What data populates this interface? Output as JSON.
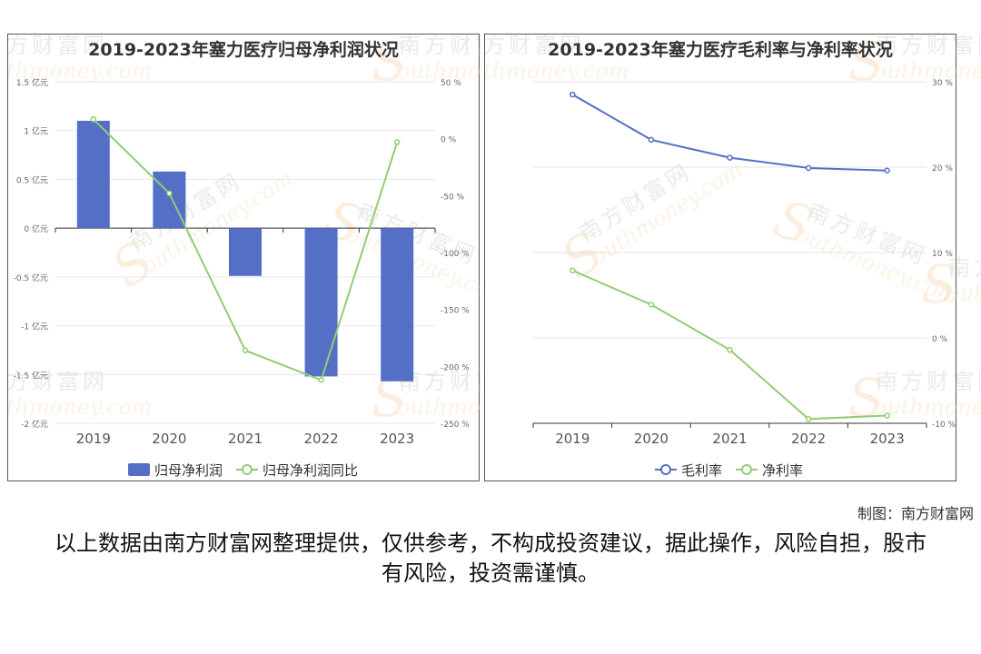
{
  "chart_data": [
    {
      "type": "bar+line",
      "title": "2019-2023年塞力医疗归母净利润状况",
      "categories": [
        "2019",
        "2020",
        "2021",
        "2022",
        "2023"
      ],
      "series": [
        {
          "name": "归母净利润",
          "type": "bar",
          "axis": "left",
          "unit": "亿元",
          "color": "#5470c6",
          "values": [
            1.1,
            0.58,
            -0.49,
            -1.52,
            -1.57
          ]
        },
        {
          "name": "归母净利润同比",
          "type": "line",
          "axis": "right",
          "unit": "%",
          "color": "#91cc75",
          "values": [
            17,
            -48,
            -186,
            -212,
            -3
          ]
        }
      ],
      "y_left": {
        "min": -2,
        "max": 1.5,
        "ticks": [
          "1.5 亿元",
          "1 亿元",
          "0.5 亿元",
          "0 亿元",
          "-0.5 亿元",
          "-1 亿元",
          "-1.5 亿元",
          "-2 亿元"
        ]
      },
      "y_right": {
        "min": -250,
        "max": 50,
        "ticks": [
          "50 %",
          "0 %",
          "-50 %",
          "-100 %",
          "-150 %",
          "-200 %",
          "-250 %"
        ]
      },
      "legend_position": "bottom"
    },
    {
      "type": "line",
      "title": "2019-2023年塞力医疗毛利率与净利率状况",
      "categories": [
        "2019",
        "2020",
        "2021",
        "2022",
        "2023"
      ],
      "series": [
        {
          "name": "毛利率",
          "type": "line",
          "unit": "%",
          "color": "#5470c6",
          "values": [
            28.5,
            23.2,
            21.1,
            19.9,
            19.6
          ]
        },
        {
          "name": "净利率",
          "type": "line",
          "unit": "%",
          "color": "#91cc75",
          "values": [
            7.9,
            3.9,
            -1.4,
            -9.5,
            -9.1
          ]
        }
      ],
      "y_right": {
        "min": -10,
        "max": 30,
        "ticks": [
          "30 %",
          "20 %",
          "10 %",
          "0 %",
          "-10 %"
        ]
      },
      "legend_position": "bottom"
    }
  ],
  "watermark": {
    "cn": "南方财富网",
    "en": "outhmoney.com",
    "letter": "S"
  },
  "credit": "制图：南方财富网",
  "disclaimer": "以上数据由南方财富网整理提供，仅供参考，不构成投资建议，据此操作，风险自担，股市有风险，投资需谨慎。"
}
